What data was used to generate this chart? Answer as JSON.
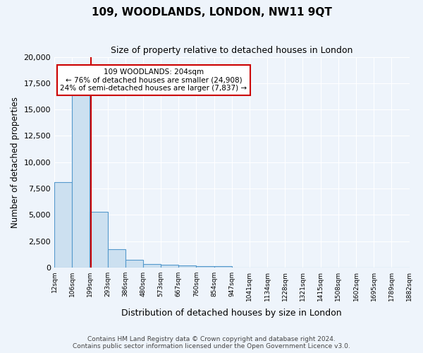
{
  "title": "109, WOODLANDS, LONDON, NW11 9QT",
  "subtitle": "Size of property relative to detached houses in London",
  "xlabel": "Distribution of detached houses by size in London",
  "ylabel": "Number of detached properties",
  "footnote1": "Contains HM Land Registry data © Crown copyright and database right 2024.",
  "footnote2": "Contains public sector information licensed under the Open Government Licence v3.0.",
  "bin_edges_labels": [
    "12sqm",
    "106sqm",
    "199sqm",
    "293sqm",
    "386sqm",
    "480sqm",
    "573sqm",
    "667sqm",
    "760sqm",
    "854sqm",
    "947sqm",
    "1041sqm",
    "1134sqm",
    "1228sqm",
    "1321sqm",
    "1415sqm",
    "1508sqm",
    "1602sqm",
    "1695sqm",
    "1789sqm",
    "1882sqm"
  ],
  "bar_heights": [
    8100,
    16500,
    5300,
    1750,
    700,
    320,
    230,
    170,
    150,
    130,
    0,
    0,
    0,
    0,
    0,
    0,
    0,
    0,
    0,
    0
  ],
  "bar_color": "#cce0f0",
  "bar_edge_color": "#5599cc",
  "property_line_color": "#cc0000",
  "annotation_text": "109 WOODLANDS: 204sqm\n← 76% of detached houses are smaller (24,908)\n24% of semi-detached houses are larger (7,837) →",
  "annotation_box_color": "#ffffff",
  "annotation_box_edge_color": "#cc0000",
  "ylim": [
    0,
    20000
  ],
  "background_color": "#eef4fb",
  "grid_color": "#ffffff"
}
